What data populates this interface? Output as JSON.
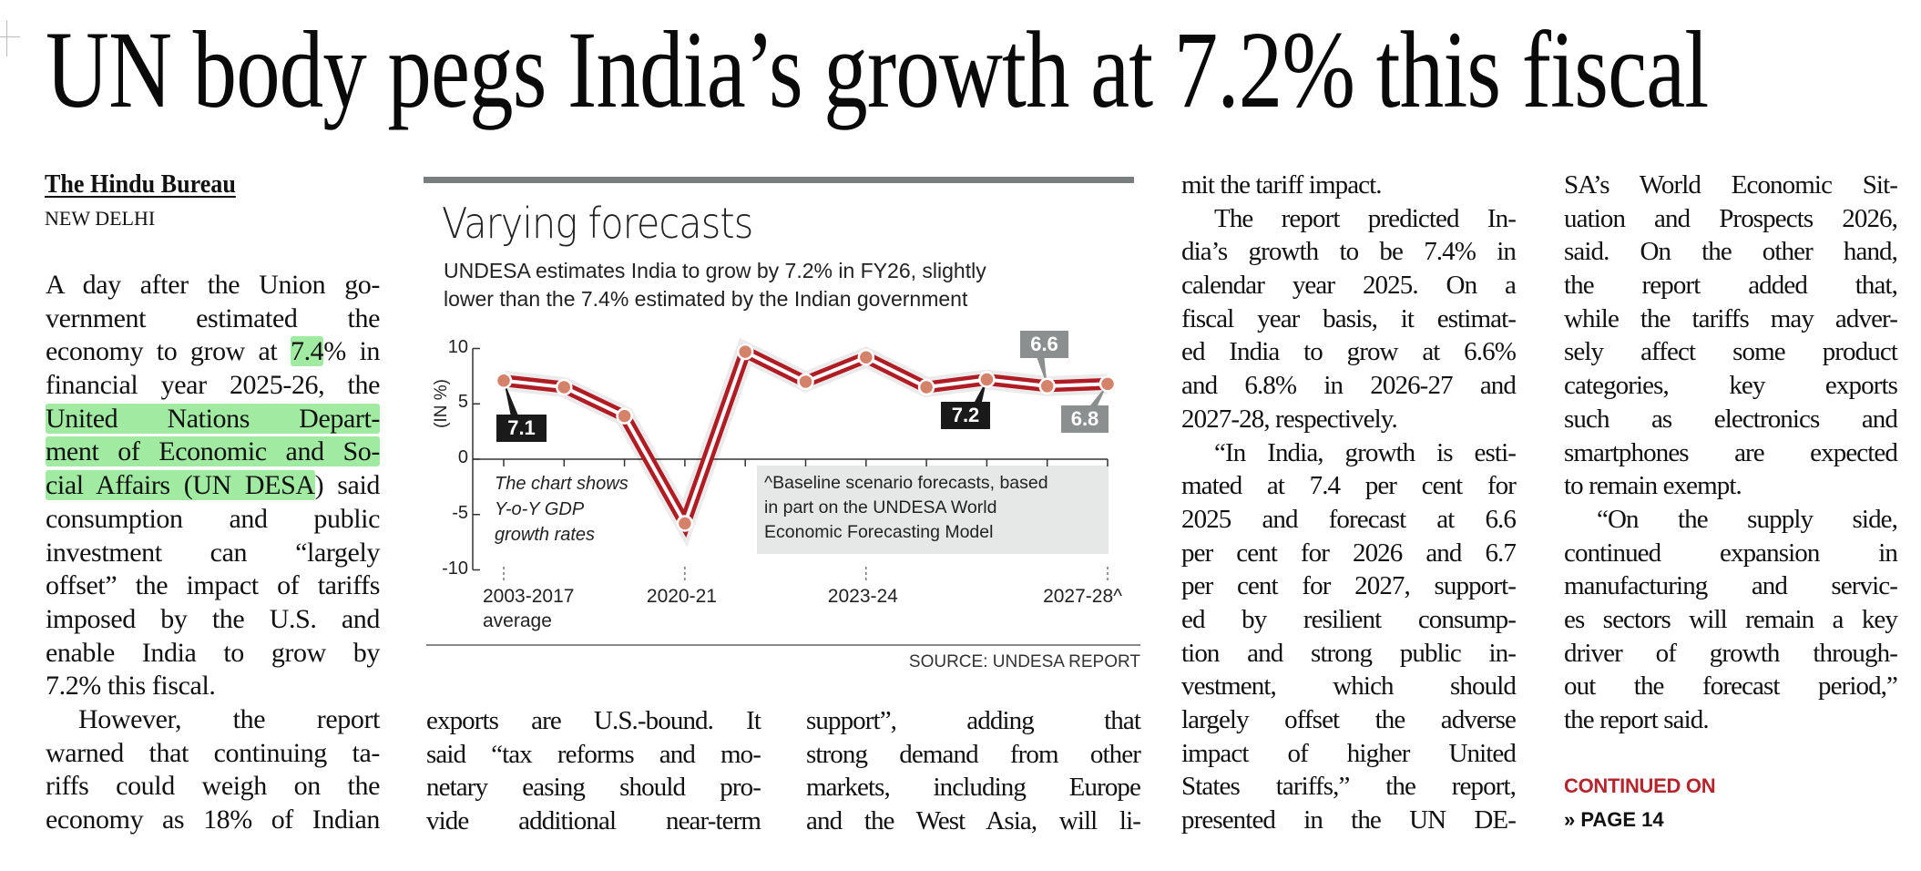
{
  "headline": "UN body pegs India’s growth at 7.2% this fiscal",
  "byline": "The Hindu Bureau",
  "dateline": "NEW DELHI",
  "highlight_color": "#6ede6e",
  "accent_red": "#b3262e",
  "columns": {
    "col1": [
      {
        "t": "A day after the Union go-"
      },
      {
        "t": "vernment estimated the"
      },
      {
        "parts": [
          {
            "t": "economy to grow at "
          },
          {
            "t": "7.4",
            "hl": true
          },
          {
            "t": "% in"
          }
        ]
      },
      {
        "t": "financial year 2025-26, the"
      },
      {
        "parts": [
          {
            "t": "United Nations Depart-",
            "hl": true
          }
        ]
      },
      {
        "parts": [
          {
            "t": "ment of Economic and So-",
            "hl": true
          }
        ]
      },
      {
        "parts": [
          {
            "t": "cial Affairs (UN DESA",
            "hl": true
          },
          {
            "t": ") said"
          }
        ]
      },
      {
        "t": "consumption and public"
      },
      {
        "t": "investment can “largely"
      },
      {
        "t": "offset” the impact of tariffs"
      },
      {
        "t": "imposed by the U.S. and"
      },
      {
        "t": "enable India to grow by"
      },
      {
        "t": "7.2% this fiscal.",
        "end": true
      },
      {
        "t": "However, the report",
        "indent": true
      },
      {
        "t": "warned that continuing ta-"
      },
      {
        "t": "riffs could weigh on the"
      },
      {
        "t": "economy as 18% of Indian"
      }
    ],
    "col2b": [
      {
        "t": "exports are U.S.-bound. It"
      },
      {
        "t": "said “tax reforms and mo-"
      },
      {
        "t": "netary easing should pro-"
      },
      {
        "t": "vide additional near-term"
      }
    ],
    "col2c": [
      {
        "t": "support”, adding that"
      },
      {
        "t": "strong demand from other"
      },
      {
        "t": "markets, including Europe"
      },
      {
        "t": "and the West Asia, will li-"
      }
    ],
    "col3": [
      {
        "t": "mit the tariff impact.",
        "end": true
      },
      {
        "t": "The report predicted In-",
        "indent": true
      },
      {
        "t": "dia’s growth to be 7.4% in"
      },
      {
        "t": "calendar year 2025. On a"
      },
      {
        "t": "fiscal year basis, it estimat-"
      },
      {
        "t": "ed India to grow at 6.6%"
      },
      {
        "t": "and 6.8% in 2026-27 and"
      },
      {
        "t": "2027-28, respectively.",
        "end": true
      },
      {
        "t": "“In India, growth is esti-",
        "indent": true
      },
      {
        "t": "mated at 7.4 per cent for"
      },
      {
        "t": "2025 and forecast at 6.6"
      },
      {
        "t": "per cent for 2026 and 6.7"
      },
      {
        "t": "per cent for 2027, support-"
      },
      {
        "t": "ed by resilient consump-"
      },
      {
        "t": "tion and strong public in-"
      },
      {
        "t": "vestment, which should"
      },
      {
        "t": "largely offset the adverse"
      },
      {
        "t": "impact of higher United"
      },
      {
        "t": "States tariffs,” the report,"
      },
      {
        "t": "presented in the UN DE-"
      }
    ],
    "col4": [
      {
        "t": "SA’s World Economic Sit-"
      },
      {
        "t": "uation and Prospects 2026,"
      },
      {
        "t": "said. On the other hand,"
      },
      {
        "t": "the report added that,"
      },
      {
        "t": "while the tariffs may adver-"
      },
      {
        "t": "sely affect some product"
      },
      {
        "t": "categories, key exports"
      },
      {
        "t": "such as electronics and"
      },
      {
        "t": "smartphones are expected"
      },
      {
        "t": "to remain exempt.",
        "end": true
      },
      {
        "t": "“On the supply side,",
        "indent": true
      },
      {
        "t": "continued expansion in"
      },
      {
        "t": "manufacturing and servic-"
      },
      {
        "t": "es sectors will remain a key"
      },
      {
        "t": "driver of growth through-"
      },
      {
        "t": "out the forecast period,”"
      },
      {
        "t": "the report said.",
        "end": true
      }
    ]
  },
  "continued": {
    "label": "CONTINUED ON",
    "page": "» PAGE 14"
  },
  "chart_data": {
    "type": "line",
    "title": "Varying forecasts",
    "subtitle": [
      "UNDESA estimates India to grow by 7.2% in FY26, slightly",
      "lower than the 7.4% estimated by the Indian government"
    ],
    "ylabel": "(IN %)",
    "ylim": [
      -10,
      10
    ],
    "yticks": [
      "10",
      "5",
      "0",
      "-5",
      "-10"
    ],
    "x_tick_labels": [
      {
        "index": 0,
        "lines": [
          "2003-2017",
          "average"
        ]
      },
      {
        "index": 3,
        "lines": [
          "2020-21"
        ]
      },
      {
        "index": 6,
        "lines": [
          "2023-24"
        ]
      },
      {
        "index": 10,
        "lines": [
          "2027-28^"
        ]
      }
    ],
    "values": [
      7.1,
      6.5,
      3.9,
      -5.8,
      9.7,
      7.0,
      9.2,
      6.5,
      7.2,
      6.6,
      6.8
    ],
    "data_labels": [
      {
        "index": 0,
        "text": "7.1",
        "style": "dark"
      },
      {
        "index": 8,
        "text": "7.2",
        "style": "dark"
      },
      {
        "index": 9,
        "text": "6.6",
        "style": "gray"
      },
      {
        "index": 10,
        "text": "6.8",
        "style": "gray"
      }
    ],
    "note_italic": [
      "The chart shows",
      "Y-o-Y GDP",
      "growth rates"
    ],
    "note_box": [
      "^Baseline scenario forecasts, based",
      "in part on the UNDESA World",
      "Economic Forecasting Model"
    ],
    "source": "SOURCE: UNDESA REPORT",
    "grid": false,
    "colors": {
      "line": "#b01c24",
      "dot": "#d4826a",
      "label_dark": "#1a1a1a",
      "label_gray": "#8c8f8f",
      "note_bg": "#e6e8e8"
    }
  }
}
